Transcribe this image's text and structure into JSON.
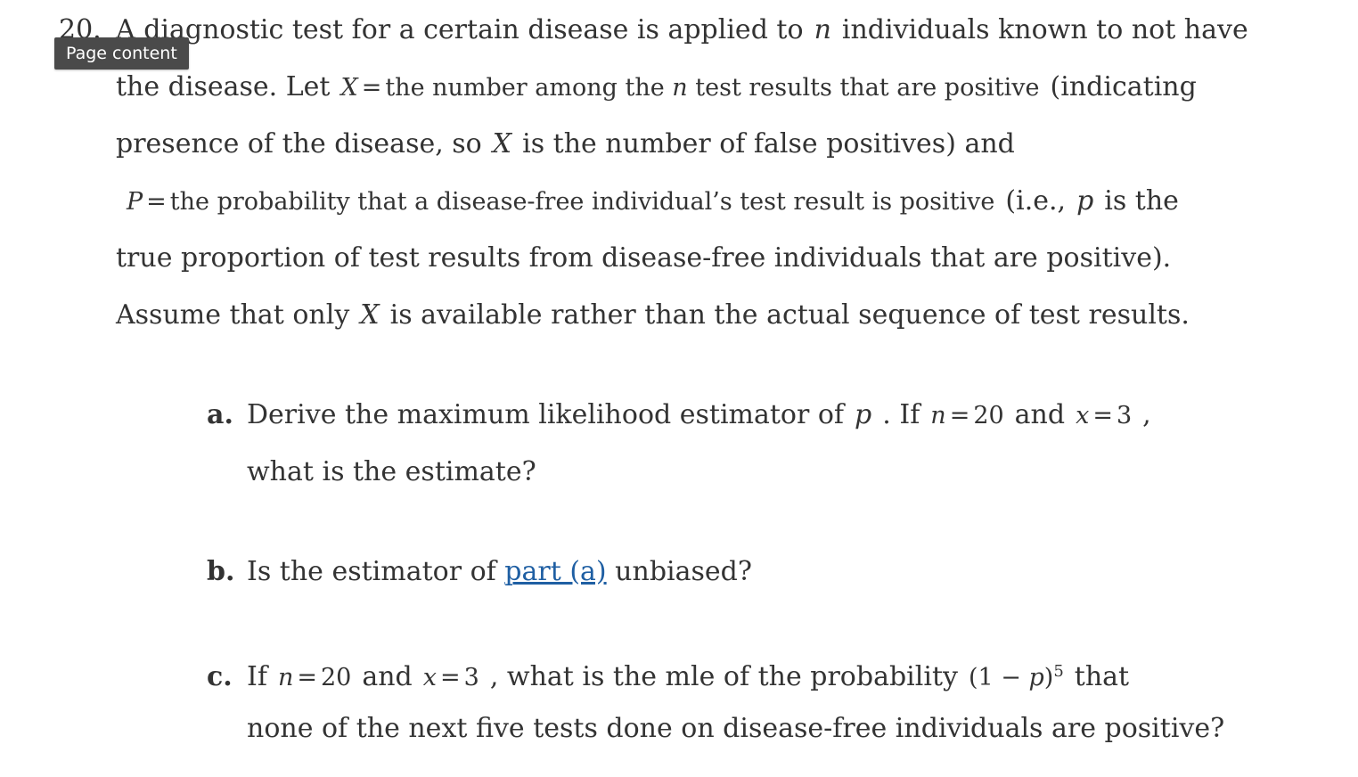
{
  "question": {
    "number": "20.",
    "tooltip": "Page content",
    "line1_a": "A diagnostic test for a certain disease is applied to",
    "line1_n": "n",
    "line1_b": "individuals known to not have",
    "line2_a": "the disease. Let",
    "line2_X": "X",
    "line2_math_a": "the number among the",
    "line2_math_n": "n",
    "line2_math_b": "test results that are positive",
    "line2_b": "(indicating",
    "line3_a": "presence of the disease, so",
    "line3_X": "X",
    "line3_b": "is the number of false positives) and",
    "line4_P": "P",
    "line4_math": "the probability that a disease-free individual’s test result is positive",
    "line4_a": "(i.e.,",
    "line4_p": "p",
    "line4_b": "is the",
    "line5": "true proportion of test results from disease-free individuals that are positive).",
    "line6_a": "Assume that only",
    "line6_X": "X",
    "line6_b": "is available rather than the actual sequence of test results."
  },
  "parts": {
    "a": {
      "label": "a.",
      "text_a": "Derive the maximum likelihood estimator of",
      "p": "p",
      "text_b": ". If",
      "n_var": "n",
      "n_val": "20",
      "and": "and",
      "x_var": "x",
      "x_val": "3",
      "comma": ",",
      "line2": "what is the estimate?"
    },
    "b": {
      "label": "b.",
      "text_a": "Is the estimator of",
      "link": "part (a)",
      "text_b": "unbiased?"
    },
    "c": {
      "label": "c.",
      "text_a": "If",
      "n_var": "n",
      "n_val": "20",
      "and": "and",
      "x_var": "x",
      "x_val": "3",
      "text_b": ", what is the mle of the probability",
      "expr_open": "(1 −",
      "expr_p": "p",
      "expr_close": ")",
      "expr_exp": "5",
      "text_c": "that",
      "line2": "none of the next five tests done on disease-free individuals are positive?"
    }
  },
  "colors": {
    "text": "#333333",
    "link": "#1f5fa3",
    "tooltip_bg": "#4a4a4a"
  }
}
